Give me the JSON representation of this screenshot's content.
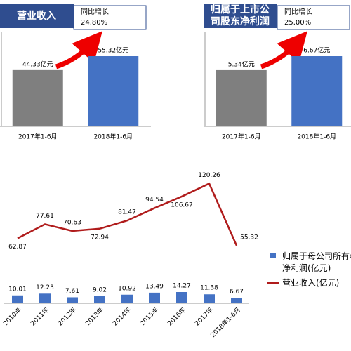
{
  "chart_data": [
    {
      "type": "bar",
      "title": [
        "营业收入"
      ],
      "annotation": [
        "同比增长",
        "24.80%"
      ],
      "categories": [
        "2017年1-6月",
        "2018年1-6月"
      ],
      "values": [
        44.33,
        55.32
      ],
      "value_labels": [
        "44.33亿元",
        "55.32亿元"
      ],
      "colors": [
        "#7f7f7f",
        "#4472c4"
      ]
    },
    {
      "type": "bar",
      "title": [
        "归属于上市公",
        "司股东净利润"
      ],
      "annotation": [
        "同比增长",
        "25.00%"
      ],
      "categories": [
        "2017年1-6月",
        "2018年1-6月"
      ],
      "values": [
        5.34,
        6.67
      ],
      "value_labels": [
        "5.34亿元",
        "6.67亿元"
      ],
      "colors": [
        "#7f7f7f",
        "#4472c4"
      ]
    },
    {
      "type": "combo",
      "categories": [
        "2010年",
        "2011年",
        "2012年",
        "2013年",
        "2014年",
        "2015年",
        "2016年",
        "2017年",
        "2018年1-6月"
      ],
      "series": [
        {
          "name": "归属于母公司所有者净利润(亿元)",
          "type": "bar",
          "color": "#4472c4",
          "values": [
            10.01,
            12.23,
            7.61,
            9.02,
            10.92,
            13.49,
            14.27,
            11.38,
            6.67
          ]
        },
        {
          "name": "营业收入(亿元)",
          "type": "line",
          "color": "#b01c1c",
          "values": [
            62.87,
            77.61,
            70.63,
            72.94,
            81.47,
            94.54,
            106.67,
            120.26,
            55.32
          ]
        }
      ]
    }
  ]
}
